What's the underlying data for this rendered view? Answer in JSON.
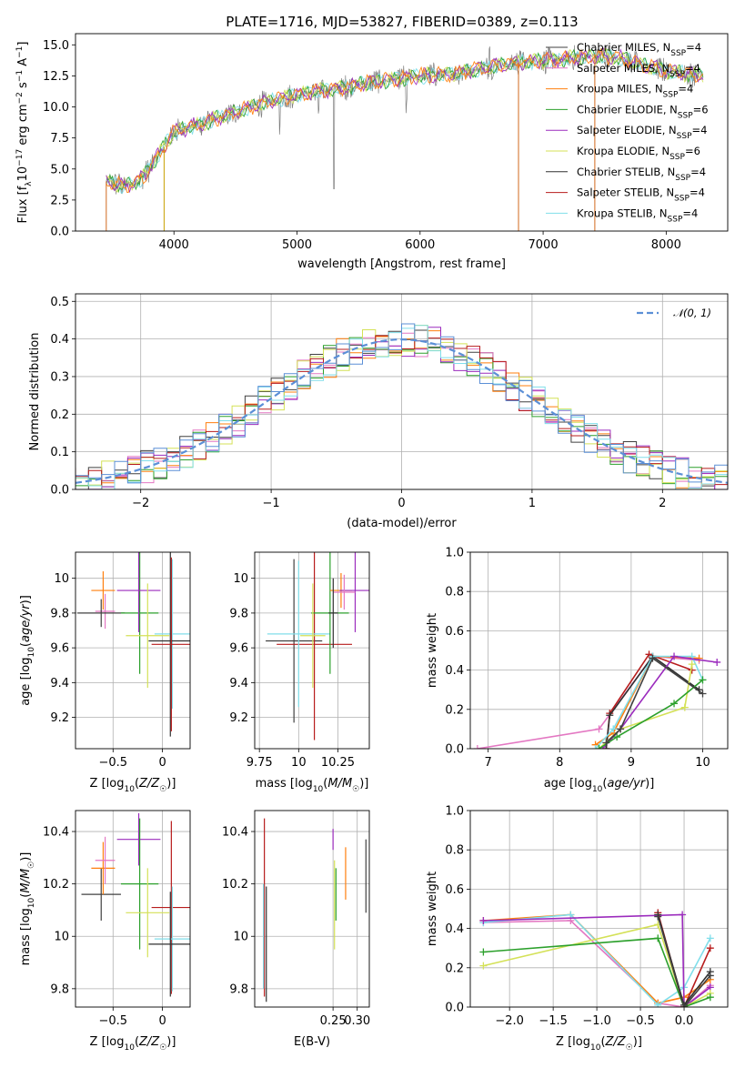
{
  "title": "PLATE=1716, MJD=53827, FIBERID=0389, z=0.113",
  "colors": {
    "Chabrier MILES": "#404040",
    "Salpeter MILES": "#e377c2",
    "Kroupa MILES": "#ff7f0e",
    "Chabrier ELODIE": "#2ca02c",
    "Salpeter ELODIE": "#9b2bbd",
    "Kroupa ELODIE": "#d4e157",
    "Chabrier STELIB": "#303030",
    "Salpeter STELIB": "#b71c1c",
    "Kroupa STELIB": "#80deea",
    "data": "#808080",
    "normal": "#5b8fd6"
  },
  "chart_data": [
    {
      "id": "spectrum",
      "type": "line",
      "title": "PLATE=1716, MJD=53827, FIBERID=0389, z=0.113",
      "xlabel": "wavelength [Angstrom, rest frame]",
      "ylabel": "Flux [f_λ 10^-17 erg cm^-2 s^-1 A^-1]",
      "xlim": [
        3200,
        8500
      ],
      "ylim": [
        0,
        15.9
      ],
      "xticks": [
        "4000",
        "5000",
        "6000",
        "7000",
        "8000"
      ],
      "yticks": [
        "0.0",
        "2.5",
        "5.0",
        "7.5",
        "10.0",
        "12.5",
        "15.0"
      ],
      "grid": false,
      "legend_position": "top-right",
      "legend": [
        "Chabrier MILES, N_SSP=4",
        "Salpeter MILES, N_SSP=4",
        "Kroupa MILES, N_SSP=4",
        "Chabrier ELODIE, N_SSP=6",
        "Salpeter ELODIE, N_SSP=4",
        "Kroupa ELODIE, N_SSP=6",
        "Chabrier STELIB, N_SSP=4",
        "Salpeter STELIB, N_SSP=4",
        "Kroupa STELIB, N_SSP=4"
      ],
      "continuum": {
        "x": [
          3450,
          3600,
          3750,
          3900,
          4000,
          4200,
          4400,
          4600,
          4800,
          5000,
          5200,
          5400,
          5600,
          5800,
          6000,
          6200,
          6400,
          6600,
          6800,
          7000,
          7200,
          7400,
          7600,
          7800,
          8000,
          8200,
          8300
        ],
        "y": [
          4.0,
          3.6,
          4.3,
          6.5,
          8.0,
          8.6,
          9.2,
          9.9,
          10.5,
          11.0,
          11.3,
          11.6,
          12.0,
          12.2,
          12.5,
          12.6,
          12.9,
          13.3,
          13.6,
          13.7,
          13.9,
          14.1,
          14.0,
          13.4,
          12.9,
          12.6,
          12.6
        ]
      },
      "drops": [
        3450,
        3920,
        6800,
        7420
      ]
    },
    {
      "id": "residuals",
      "type": "histogram",
      "xlabel": "(data-model)/error",
      "ylabel": "Normed distribution",
      "xlim": [
        -2.5,
        2.5
      ],
      "ylim": [
        0,
        0.52
      ],
      "xticks": [
        "-2",
        "-1",
        "0",
        "1",
        "2"
      ],
      "yticks": [
        "0.0",
        "0.1",
        "0.2",
        "0.3",
        "0.4",
        "0.5"
      ],
      "grid": true,
      "legend": [
        "𝒩(0, 1)"
      ],
      "legend_position": "top-right",
      "bin_width": 0.1
    },
    {
      "id": "age_vs_Z",
      "type": "scatter",
      "xlabel": "Z [log10(Z/Z☉)]",
      "ylabel": "age [log10(age/yr)]",
      "xlim": [
        -0.88,
        0.28
      ],
      "ylim": [
        9.02,
        10.15
      ],
      "xticks": [
        -0.5,
        0.0
      ],
      "yticks": [
        9.2,
        9.4,
        9.6,
        9.8,
        10.0
      ],
      "grid": true,
      "points": [
        {
          "c": "Kroupa MILES",
          "x": -0.6,
          "xerr": 0.12,
          "y": 9.93,
          "yerr": 0.11
        },
        {
          "c": "Salpeter MILES",
          "x": -0.58,
          "xerr": 0.1,
          "y": 9.81,
          "yerr": 0.1
        },
        {
          "c": "Chabrier MILES",
          "x": -0.62,
          "xerr": 0.24,
          "y": 9.8,
          "yerr": 0.08
        },
        {
          "c": "Chabrier ELODIE",
          "x": -0.23,
          "xerr": 0.19,
          "y": 9.8,
          "yerr": 0.35
        },
        {
          "c": "Salpeter ELODIE",
          "x": -0.24,
          "xerr": 0.22,
          "y": 9.93,
          "yerr": 0.24
        },
        {
          "c": "Kroupa ELODIE",
          "x": -0.15,
          "xerr": 0.22,
          "y": 9.67,
          "yerr": 0.3
        },
        {
          "c": "Kroupa STELIB",
          "x": 0.1,
          "xerr": 0.18,
          "y": 9.68,
          "yerr": 0.43
        },
        {
          "c": "Chabrier STELIB",
          "x": 0.08,
          "xerr": 0.22,
          "y": 9.64,
          "yerr": 0.55
        },
        {
          "c": "Salpeter STELIB",
          "x": 0.09,
          "xerr": 0.2,
          "y": 9.62,
          "yerr": 0.5
        }
      ]
    },
    {
      "id": "age_vs_mass",
      "type": "scatter",
      "xlabel": "mass [log10(M/M☉)]",
      "ylabel": "",
      "xlim": [
        9.72,
        10.45
      ],
      "ylim": [
        9.02,
        10.15
      ],
      "xticks": [
        9.75,
        10.0,
        10.25
      ],
      "yticks": [
        9.2,
        9.4,
        9.6,
        9.8,
        10.0
      ],
      "grid": true,
      "points": [
        {
          "c": "Chabrier MILES",
          "x": 9.97,
          "xerr": 0.18,
          "y": 9.64,
          "yerr": 0.47
        },
        {
          "c": "Salpeter STELIB",
          "x": 10.1,
          "xerr": 0.24,
          "y": 9.62,
          "yerr": 0.55
        },
        {
          "c": "Kroupa STELIB",
          "x": 10.0,
          "xerr": 0.2,
          "y": 9.68,
          "yerr": 0.42
        },
        {
          "c": "Chabrier ELODIE",
          "x": 10.2,
          "xerr": 0.12,
          "y": 9.8,
          "yerr": 0.35
        },
        {
          "c": "Kroupa MILES",
          "x": 10.27,
          "xerr": 0.07,
          "y": 9.93,
          "yerr": 0.1
        },
        {
          "c": "Salpeter ELODIE",
          "x": 10.36,
          "xerr": 0.1,
          "y": 9.93,
          "yerr": 0.24
        },
        {
          "c": "Salpeter MILES",
          "x": 10.29,
          "xerr": 0.07,
          "y": 9.92,
          "yerr": 0.1
        },
        {
          "c": "Kroupa ELODIE",
          "x": 10.09,
          "xerr": 0.08,
          "y": 9.67,
          "yerr": 0.3
        },
        {
          "c": "Chabrier STELIB",
          "x": 10.22,
          "xerr": 0.03,
          "y": 9.8,
          "yerr": 0.2
        }
      ]
    },
    {
      "id": "weights_vs_age",
      "type": "line",
      "xlabel": "age [log10(age/yr)]",
      "ylabel": "mass weight",
      "xlim": [
        6.75,
        10.35
      ],
      "ylim": [
        0,
        1.0
      ],
      "xticks": [
        7,
        8,
        9,
        10
      ],
      "yticks": [
        "0.0",
        "0.2",
        "0.4",
        "0.6",
        "0.8",
        "1.0"
      ],
      "grid": true,
      "series": [
        {
          "c": "Salpeter MILES",
          "x": [
            6.85,
            8.55,
            9.3,
            9.95
          ],
          "y": [
            0.0,
            0.1,
            0.47,
            0.45
          ]
        },
        {
          "c": "Kroupa MILES",
          "x": [
            8.5,
            8.75,
            9.3,
            9.95
          ],
          "y": [
            0.02,
            0.08,
            0.47,
            0.46
          ]
        },
        {
          "c": "Salpeter STELIB",
          "x": [
            8.65,
            8.7,
            9.25,
            9.85
          ],
          "y": [
            0.0,
            0.18,
            0.48,
            0.4
          ]
        },
        {
          "c": "Chabrier STELIB",
          "x": [
            8.65,
            8.7,
            9.3,
            9.95
          ],
          "y": [
            0.0,
            0.17,
            0.47,
            0.3
          ]
        },
        {
          "c": "Kroupa STELIB",
          "x": [
            8.5,
            8.75,
            9.3,
            9.85,
            10.0
          ],
          "y": [
            0.0,
            0.1,
            0.47,
            0.47,
            0.35
          ]
        },
        {
          "c": "Salpeter ELODIE",
          "x": [
            8.6,
            8.85,
            9.6,
            10.2
          ],
          "y": [
            0.0,
            0.1,
            0.47,
            0.44
          ]
        },
        {
          "c": "Kroupa ELODIE",
          "x": [
            8.55,
            8.85,
            9.75,
            9.85
          ],
          "y": [
            0.0,
            0.1,
            0.21,
            0.43
          ]
        },
        {
          "c": "Chabrier ELODIE",
          "x": [
            8.55,
            8.8,
            9.6,
            10.0
          ],
          "y": [
            0.0,
            0.06,
            0.23,
            0.35
          ]
        },
        {
          "c": "Chabrier MILES",
          "x": [
            8.65,
            8.85,
            9.3,
            10.0
          ],
          "y": [
            0.03,
            0.1,
            0.46,
            0.28
          ]
        }
      ]
    },
    {
      "id": "mass_vs_Z",
      "type": "scatter",
      "xlabel": "Z [log10(Z/Z☉)]",
      "ylabel": "mass [log10(M/M☉)]",
      "xlim": [
        -0.88,
        0.28
      ],
      "ylim": [
        9.73,
        10.48
      ],
      "xticks": [
        -0.5,
        0.0
      ],
      "yticks": [
        9.8,
        10.0,
        10.2,
        10.4
      ],
      "grid": true,
      "points": [
        {
          "c": "Chabrier MILES",
          "x": -0.62,
          "xerr": 0.2,
          "y": 10.16,
          "yerr": 0.1
        },
        {
          "c": "Kroupa MILES",
          "x": -0.6,
          "xerr": 0.12,
          "y": 10.26,
          "yerr": 0.1
        },
        {
          "c": "Salpeter MILES",
          "x": -0.58,
          "xerr": 0.1,
          "y": 10.29,
          "yerr": 0.09
        },
        {
          "c": "Salpeter ELODIE",
          "x": -0.24,
          "xerr": 0.22,
          "y": 10.37,
          "yerr": 0.1
        },
        {
          "c": "Chabrier ELODIE",
          "x": -0.23,
          "xerr": 0.19,
          "y": 10.2,
          "yerr": 0.25
        },
        {
          "c": "Kroupa ELODIE",
          "x": -0.15,
          "xerr": 0.22,
          "y": 10.09,
          "yerr": 0.17
        },
        {
          "c": "Salpeter STELIB",
          "x": 0.09,
          "xerr": 0.2,
          "y": 10.11,
          "yerr": 0.33
        },
        {
          "c": "Kroupa STELIB",
          "x": 0.1,
          "xerr": 0.18,
          "y": 9.99,
          "yerr": 0.2
        },
        {
          "c": "Chabrier STELIB",
          "x": 0.08,
          "xerr": 0.22,
          "y": 9.97,
          "yerr": 0.2
        }
      ]
    },
    {
      "id": "mass_vs_EBV",
      "type": "scatter",
      "xlabel": "E(B-V)",
      "ylabel": "",
      "xlim": [
        0.088,
        0.325
      ],
      "ylim": [
        9.73,
        10.48
      ],
      "xticks": [
        "0.25",
        "0.30"
      ],
      "yticks": [
        9.8,
        10.0,
        10.2,
        10.4
      ],
      "grid": true,
      "points": [
        {
          "c": "Salpeter STELIB",
          "x": 0.108,
          "xerr": 0,
          "y": 10.11,
          "yerr": 0.34
        },
        {
          "c": "Kroupa STELIB",
          "x": 0.106,
          "xerr": 0,
          "y": 10.0,
          "yerr": 0.2
        },
        {
          "c": "Chabrier STELIB",
          "x": 0.112,
          "xerr": 0,
          "y": 9.97,
          "yerr": 0.22
        },
        {
          "c": "Salpeter ELODIE",
          "x": 0.25,
          "xerr": 0,
          "y": 10.37,
          "yerr": 0.04
        },
        {
          "c": "Kroupa ELODIE",
          "x": 0.253,
          "xerr": 0,
          "y": 10.12,
          "yerr": 0.17
        },
        {
          "c": "Chabrier ELODIE",
          "x": 0.256,
          "xerr": 0,
          "y": 10.16,
          "yerr": 0.1
        },
        {
          "c": "Kroupa MILES",
          "x": 0.276,
          "xerr": 0,
          "y": 10.24,
          "yerr": 0.1
        },
        {
          "c": "Chabrier MILES",
          "x": 0.318,
          "xerr": 0,
          "y": 10.23,
          "yerr": 0.14
        }
      ]
    },
    {
      "id": "weights_vs_Z",
      "type": "line",
      "xlabel": "Z [log10(Z/Z☉)]",
      "ylabel": "mass weight",
      "xlim": [
        -2.45,
        0.5
      ],
      "ylim": [
        0,
        1.0
      ],
      "xticks": [
        "-2.0",
        "-1.5",
        "-1.0",
        "-0.5",
        "0.0"
      ],
      "yticks": [
        "0.0",
        "0.2",
        "0.4",
        "0.6",
        "0.8",
        "1.0"
      ],
      "grid": true,
      "series": [
        {
          "c": "Salpeter MILES",
          "x": [
            -2.3,
            -1.3,
            -0.3,
            0.0,
            0.3
          ],
          "y": [
            0.43,
            0.44,
            0.02,
            0.0,
            0.11
          ]
        },
        {
          "c": "Kroupa MILES",
          "x": [
            -2.3,
            -1.3,
            -0.3,
            0.0,
            0.3
          ],
          "y": [
            0.44,
            0.47,
            0.02,
            0.05,
            0.14
          ]
        },
        {
          "c": "Kroupa STELIB",
          "x": [
            -2.3,
            -1.3,
            -0.3,
            0.0,
            0.3
          ],
          "y": [
            0.43,
            0.47,
            0.01,
            0.1,
            0.35
          ]
        },
        {
          "c": "Salpeter ELODIE",
          "x": [
            -2.3,
            -0.02,
            0.0,
            0.3
          ],
          "y": [
            0.44,
            0.47,
            0.0,
            0.1
          ]
        },
        {
          "c": "Kroupa ELODIE",
          "x": [
            -2.3,
            -0.3,
            0.0,
            0.3
          ],
          "y": [
            0.21,
            0.42,
            0.0,
            0.07
          ]
        },
        {
          "c": "Chabrier ELODIE",
          "x": [
            -2.3,
            -0.3,
            0.0,
            0.3
          ],
          "y": [
            0.28,
            0.35,
            0.0,
            0.05
          ]
        },
        {
          "c": "Salpeter STELIB",
          "x": [
            -0.3,
            0.0,
            0.3
          ],
          "y": [
            0.48,
            0.0,
            0.3
          ]
        },
        {
          "c": "Chabrier STELIB",
          "x": [
            -0.3,
            0.0,
            0.3
          ],
          "y": [
            0.47,
            0.01,
            0.18
          ]
        },
        {
          "c": "Chabrier MILES",
          "x": [
            -0.3,
            0.0,
            0.3
          ],
          "y": [
            0.46,
            0.0,
            0.16
          ]
        }
      ]
    }
  ]
}
